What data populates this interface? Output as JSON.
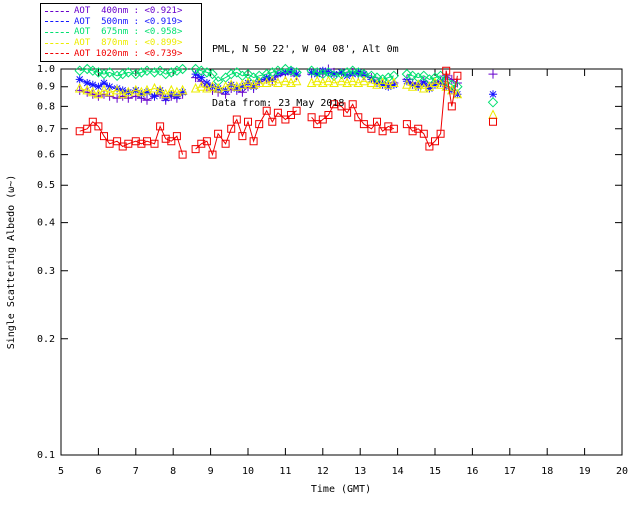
{
  "header": {
    "line1": "PML, N 50 22', W 04 08', Alt 0m",
    "line2": "Data from: 23 May 2018"
  },
  "chart_data": {
    "type": "scatter",
    "title": "",
    "xlabel": "Time (GMT)",
    "ylabel": "Single Scattering Albedo (ω~)",
    "xlim": [
      5,
      20
    ],
    "ylim": [
      0.1,
      1.0
    ],
    "yscale": "log",
    "grid": false,
    "legend_position": "top-left",
    "axis_color": "#000000",
    "gap_threshold": 0.3,
    "xticks": [
      5,
      6,
      7,
      8,
      9,
      10,
      11,
      12,
      13,
      14,
      15,
      16,
      17,
      18,
      19,
      20
    ],
    "yticks": [
      1.0,
      0.9,
      0.8,
      0.7,
      0.6,
      0.5,
      0.4,
      0.3,
      0.2,
      0.1
    ],
    "ytick_labels": [
      "1.0",
      "0.9",
      "0.8",
      "0.7",
      "0.6",
      "0.5",
      "0.4",
      "0.3",
      "0.2",
      "0.1"
    ],
    "x": [
      5.5,
      5.7,
      5.85,
      6.0,
      6.15,
      6.3,
      6.5,
      6.65,
      6.8,
      7.0,
      7.15,
      7.3,
      7.5,
      7.65,
      7.8,
      7.95,
      8.1,
      8.25,
      8.6,
      8.75,
      8.9,
      9.05,
      9.2,
      9.4,
      9.55,
      9.7,
      9.85,
      10.0,
      10.15,
      10.3,
      10.5,
      10.65,
      10.8,
      11.0,
      11.15,
      11.3,
      11.7,
      11.85,
      12.0,
      12.15,
      12.3,
      12.5,
      12.65,
      12.8,
      12.95,
      13.1,
      13.3,
      13.45,
      13.6,
      13.75,
      13.9,
      14.25,
      14.4,
      14.55,
      14.7,
      14.85,
      15.0,
      15.15,
      15.3,
      15.45,
      15.6,
      16.55
    ],
    "series": [
      {
        "name": "AOT 400nm",
        "legend_label": "AOT  400nm : <0.921>",
        "mean_value": "<0.921>",
        "color": "#6600cc",
        "marker": "plus",
        "values": [
          0.88,
          0.87,
          0.86,
          0.85,
          0.86,
          0.85,
          0.84,
          0.85,
          0.84,
          0.85,
          0.84,
          0.83,
          0.85,
          0.86,
          0.83,
          0.85,
          0.84,
          0.86,
          0.95,
          0.93,
          0.9,
          0.88,
          0.87,
          0.86,
          0.89,
          0.88,
          0.87,
          0.9,
          0.89,
          0.92,
          0.94,
          0.93,
          0.96,
          0.97,
          0.98,
          0.96,
          0.97,
          0.98,
          0.97,
          1.0,
          0.98,
          0.97,
          0.96,
          0.98,
          0.97,
          0.96,
          0.95,
          0.93,
          0.92,
          0.91,
          0.92,
          0.94,
          0.92,
          0.91,
          0.93,
          0.9,
          0.92,
          0.93,
          0.96,
          0.94,
          0.92,
          0.97
        ]
      },
      {
        "name": "AOT 500nm",
        "legend_label": "AOT  500nm : <0.919>",
        "mean_value": "<0.919>",
        "color": "#1414ff",
        "marker": "asterisk",
        "values": [
          0.94,
          0.92,
          0.91,
          0.9,
          0.92,
          0.9,
          0.89,
          0.88,
          0.87,
          0.88,
          0.86,
          0.87,
          0.85,
          0.88,
          0.84,
          0.86,
          0.85,
          0.87,
          0.97,
          0.95,
          0.92,
          0.9,
          0.89,
          0.88,
          0.91,
          0.89,
          0.9,
          0.92,
          0.9,
          0.93,
          0.95,
          0.94,
          0.97,
          0.98,
          0.99,
          0.97,
          0.98,
          0.97,
          0.99,
          0.98,
          0.97,
          0.98,
          0.96,
          0.97,
          0.98,
          0.97,
          0.94,
          0.92,
          0.91,
          0.9,
          0.91,
          0.93,
          0.91,
          0.9,
          0.92,
          0.89,
          0.91,
          0.92,
          0.9,
          0.88,
          0.86,
          0.86
        ]
      },
      {
        "name": "AOT 675nm",
        "legend_label": "AOT  675nm : <0.958>",
        "mean_value": "<0.958>",
        "color": "#00e070",
        "marker": "diamond",
        "values": [
          0.99,
          1.0,
          0.99,
          0.98,
          0.97,
          0.98,
          0.96,
          0.97,
          0.98,
          0.97,
          0.98,
          0.99,
          0.98,
          0.99,
          0.97,
          0.98,
          0.99,
          1.0,
          1.0,
          0.99,
          0.98,
          0.97,
          0.93,
          0.95,
          0.97,
          0.98,
          0.96,
          0.97,
          0.95,
          0.96,
          0.97,
          0.98,
          0.99,
          1.0,
          0.99,
          0.98,
          0.99,
          0.98,
          0.97,
          0.98,
          0.96,
          0.97,
          0.98,
          0.99,
          0.98,
          0.97,
          0.96,
          0.95,
          0.94,
          0.95,
          0.96,
          0.97,
          0.96,
          0.95,
          0.96,
          0.94,
          0.95,
          0.96,
          0.93,
          0.91,
          0.9,
          0.82
        ]
      },
      {
        "name": "AOT 870nm",
        "legend_label": "AOT  870nm : <0.899>",
        "mean_value": "<0.899>",
        "color": "#ecec00",
        "marker": "triangle",
        "values": [
          0.89,
          0.88,
          0.87,
          0.86,
          0.88,
          0.87,
          0.88,
          0.86,
          0.87,
          0.88,
          0.87,
          0.88,
          0.89,
          0.88,
          0.86,
          0.88,
          0.87,
          0.88,
          0.89,
          0.9,
          0.89,
          0.9,
          0.89,
          0.9,
          0.91,
          0.9,
          0.91,
          0.92,
          0.91,
          0.92,
          0.92,
          0.93,
          0.92,
          0.93,
          0.92,
          0.93,
          0.92,
          0.93,
          0.92,
          0.93,
          0.92,
          0.93,
          0.92,
          0.93,
          0.92,
          0.93,
          0.92,
          0.91,
          0.92,
          0.91,
          0.92,
          0.91,
          0.9,
          0.91,
          0.89,
          0.9,
          0.92,
          0.91,
          0.9,
          0.88,
          0.86,
          0.76
        ]
      },
      {
        "name": "AOT 1020nm",
        "legend_label": "AOT 1020nm : <0.739>",
        "mean_value": "<0.739>",
        "color": "#f00000",
        "marker": "square",
        "values": [
          0.69,
          0.7,
          0.73,
          0.71,
          0.67,
          0.64,
          0.65,
          0.63,
          0.64,
          0.65,
          0.64,
          0.65,
          0.64,
          0.71,
          0.66,
          0.65,
          0.67,
          0.6,
          0.62,
          0.64,
          0.65,
          0.6,
          0.68,
          0.64,
          0.7,
          0.74,
          0.67,
          0.73,
          0.65,
          0.72,
          0.78,
          0.73,
          0.77,
          0.74,
          0.76,
          0.78,
          0.75,
          0.72,
          0.74,
          0.76,
          0.81,
          0.8,
          0.77,
          0.81,
          0.75,
          0.72,
          0.7,
          0.73,
          0.69,
          0.71,
          0.7,
          0.72,
          0.69,
          0.7,
          0.68,
          0.63,
          0.65,
          0.68,
          0.99,
          0.8,
          0.96,
          0.73
        ]
      }
    ]
  }
}
